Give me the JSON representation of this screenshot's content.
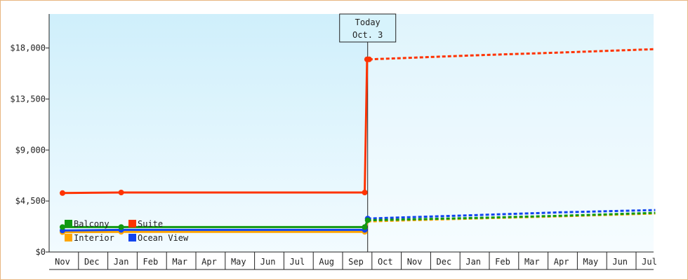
{
  "chart_data": {
    "type": "line",
    "title": "",
    "xlabel": "",
    "ylabel": "",
    "ylim": [
      0,
      21000
    ],
    "yticks": [
      0,
      4500,
      9000,
      13500,
      18000
    ],
    "ytick_labels": [
      "$0",
      "$4,500",
      "$9,000",
      "$13,500",
      "$18,000"
    ],
    "x_labels": [
      "Nov",
      "Dec",
      "Jan",
      "Feb",
      "Mar",
      "Apr",
      "May",
      "Jun",
      "Jul",
      "Aug",
      "Sep",
      "Oct",
      "Nov",
      "Dec",
      "Jan",
      "Feb",
      "Mar",
      "Apr",
      "May",
      "Jun",
      "Jul"
    ],
    "xlim": [
      0,
      20.2
    ],
    "today": {
      "x": 10.4,
      "line1": "Today",
      "line2": "Oct. 3"
    },
    "grid": false,
    "legend_position": "bottom-left",
    "series": [
      {
        "name": "Suite",
        "color": "#ff3300",
        "history": [
          [
            0,
            5200
          ],
          [
            2,
            5250
          ],
          [
            10.3,
            5250
          ],
          [
            10.38,
            17000
          ],
          [
            10.45,
            17000
          ]
        ],
        "markers": [
          [
            0,
            5200
          ],
          [
            2,
            5250
          ],
          [
            10.3,
            5250
          ],
          [
            10.38,
            17000
          ],
          [
            10.45,
            17000
          ]
        ],
        "forecast": [
          [
            10.45,
            17000
          ],
          [
            14,
            17350
          ],
          [
            17,
            17600
          ],
          [
            20.2,
            17900
          ]
        ]
      },
      {
        "name": "Balcony",
        "color": "#119911",
        "history": [
          [
            0,
            2200
          ],
          [
            2,
            2200
          ],
          [
            10.3,
            2200
          ],
          [
            10.4,
            2800
          ]
        ],
        "markers": [
          [
            0,
            2200
          ],
          [
            2,
            2200
          ],
          [
            10.3,
            2200
          ],
          [
            10.4,
            2800
          ]
        ],
        "forecast": [
          [
            10.4,
            2800
          ],
          [
            14,
            3000
          ],
          [
            17,
            3200
          ],
          [
            20.2,
            3450
          ]
        ]
      },
      {
        "name": "Ocean View",
        "color": "#1144ee",
        "history": [
          [
            0,
            1900
          ],
          [
            2,
            1950
          ],
          [
            10.3,
            1950
          ],
          [
            10.4,
            2950
          ]
        ],
        "markers": [
          [
            0,
            1900
          ],
          [
            2,
            1950
          ],
          [
            10.3,
            1950
          ],
          [
            10.4,
            2950
          ]
        ],
        "forecast": [
          [
            10.4,
            2950
          ],
          [
            14,
            3250
          ],
          [
            17,
            3500
          ],
          [
            20.2,
            3700
          ]
        ]
      },
      {
        "name": "Interior",
        "color": "#ffa500",
        "history": [
          [
            0,
            1750
          ],
          [
            2,
            1780
          ],
          [
            10.3,
            1780
          ],
          [
            10.4,
            2700
          ]
        ],
        "markers": [
          [
            0,
            1750
          ],
          [
            2,
            1780
          ],
          [
            10.3,
            1780
          ]
        ],
        "forecast": [
          [
            10.4,
            2700
          ],
          [
            14,
            2950
          ],
          [
            17,
            3150
          ],
          [
            20.2,
            3400
          ]
        ]
      }
    ],
    "legend": [
      {
        "name": "Balcony",
        "color": "#119911"
      },
      {
        "name": "Suite",
        "color": "#ff3300"
      },
      {
        "name": "Interior",
        "color": "#ffa500"
      },
      {
        "name": "Ocean View",
        "color": "#1144ee"
      }
    ]
  }
}
